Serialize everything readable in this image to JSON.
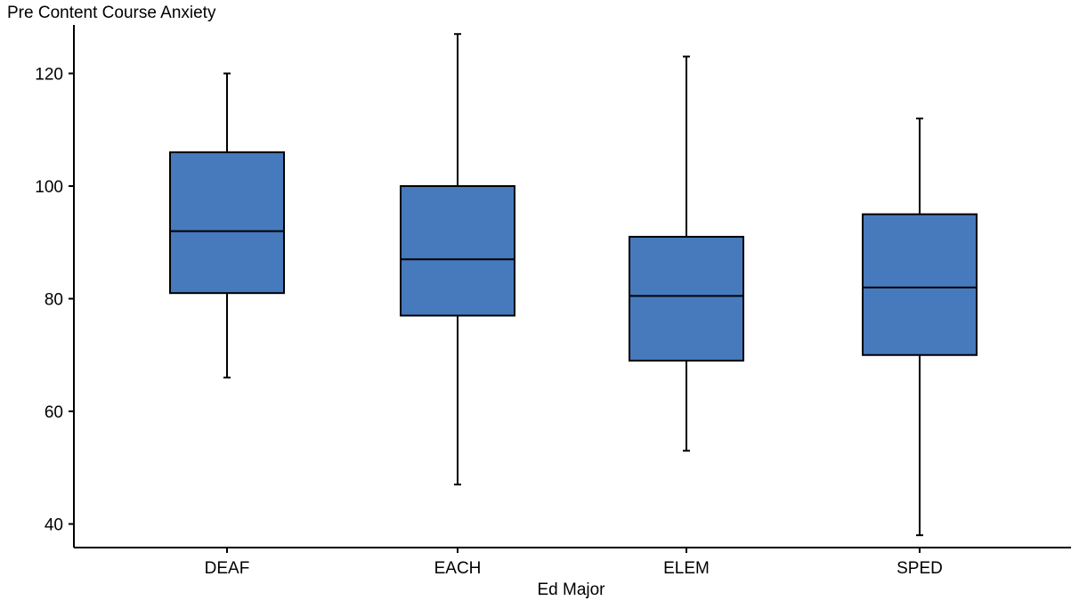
{
  "chart_data": {
    "type": "box",
    "title": "",
    "xlabel": "Ed Major",
    "ylabel": "Pre Content Course Anxiety",
    "categories": [
      "DEAF",
      "EACH",
      "ELEM",
      "SPED"
    ],
    "boxes": [
      {
        "category": "DEAF",
        "min": 66,
        "q1": 81,
        "median": 92,
        "q3": 106,
        "max": 120
      },
      {
        "category": "EACH",
        "min": 47,
        "q1": 77,
        "median": 87,
        "q3": 100,
        "max": 127
      },
      {
        "category": "ELEM",
        "min": 53,
        "q1": 69,
        "median": 80.5,
        "q3": 91,
        "max": 123
      },
      {
        "category": "SPED",
        "min": 38,
        "q1": 70,
        "median": 82,
        "q3": 95,
        "max": 112
      }
    ],
    "yticks": [
      40,
      60,
      80,
      100,
      120
    ],
    "ylim": [
      36,
      129
    ],
    "grid": false,
    "colors": {
      "box_fill": "#4779bd",
      "line": "#000000"
    }
  }
}
